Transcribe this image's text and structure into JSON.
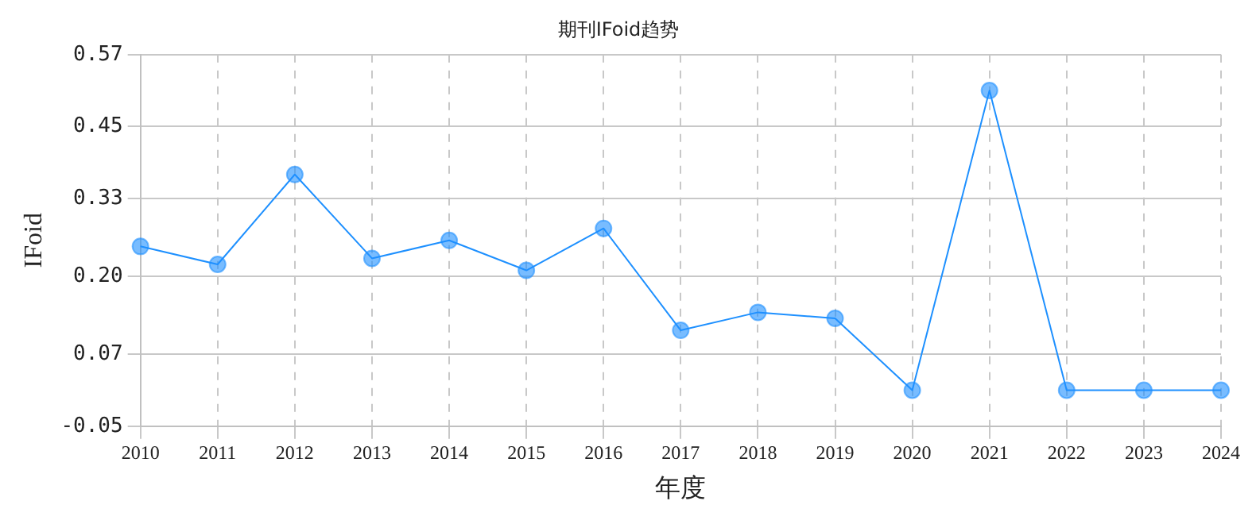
{
  "chart_data": {
    "type": "line",
    "title": "期刊IFoid趋势",
    "xlabel": "年度",
    "ylabel": "IFoid",
    "categories": [
      "2010",
      "2011",
      "2012",
      "2013",
      "2014",
      "2015",
      "2016",
      "2017",
      "2018",
      "2019",
      "2020",
      "2021",
      "2022",
      "2023",
      "2024"
    ],
    "series": [
      {
        "color": "#1e90ff",
        "values": [
          0.25,
          0.22,
          0.37,
          0.23,
          0.26,
          0.21,
          0.28,
          0.11,
          0.14,
          0.13,
          0.01,
          0.51,
          0.01,
          0.01,
          0.01
        ]
      }
    ],
    "ylim": [
      -0.05,
      0.57
    ],
    "yticks": [
      -0.05,
      0.07,
      {
        "value": 0.2,
        "label": "0.20"
      },
      0.33,
      0.45,
      0.57
    ],
    "grid": true,
    "marker": "circle",
    "line_style": "solid",
    "legend": false
  }
}
